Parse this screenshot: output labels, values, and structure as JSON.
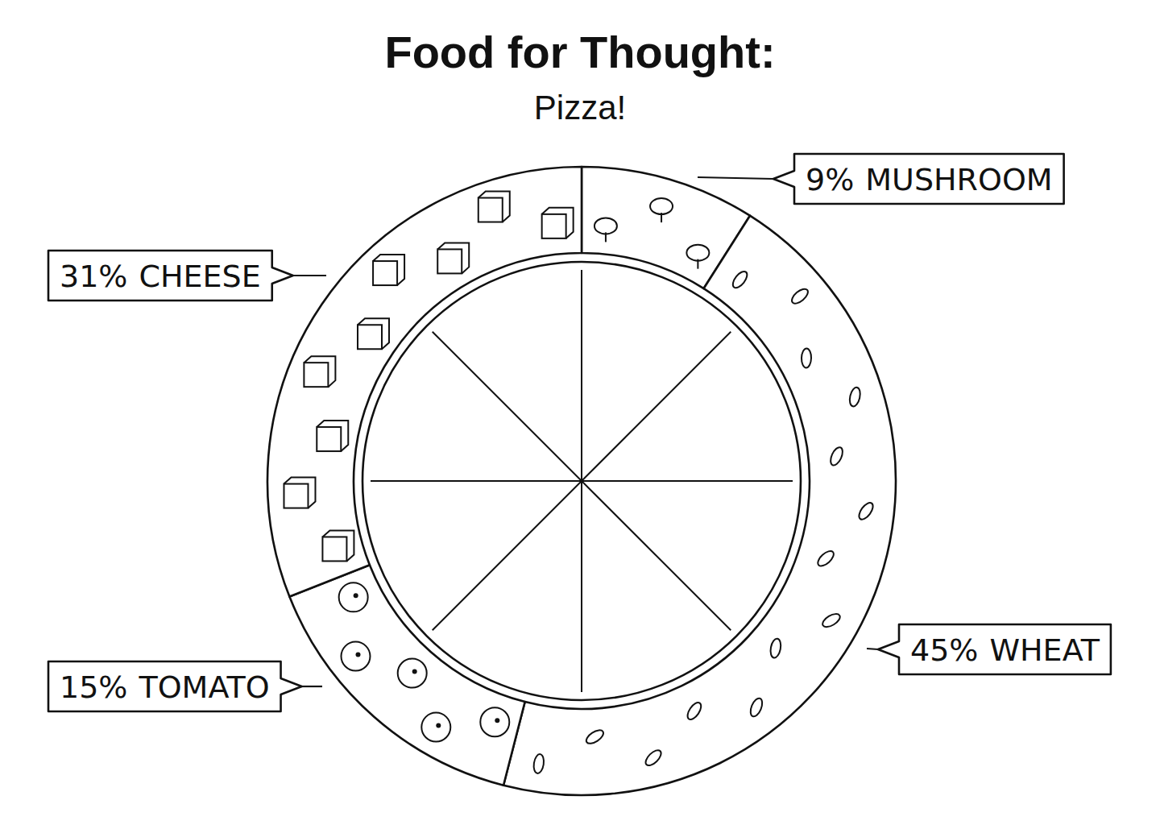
{
  "chart_data": {
    "type": "pie",
    "title": "Food for Thought:",
    "subtitle": "Pizza!",
    "categories": [
      "MUSHROOM",
      "WHEAT",
      "TOMATO",
      "CHEESE"
    ],
    "values": [
      9,
      45,
      15,
      31
    ],
    "value_labels": [
      "9%",
      "45%",
      "15%",
      "31%"
    ],
    "color": "#ffffff",
    "data_labels": true
  }
}
